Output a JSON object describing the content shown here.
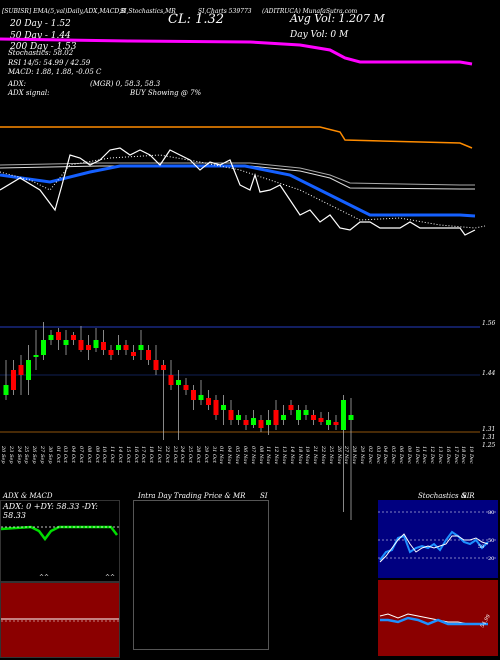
{
  "header": {
    "top_line": "[SUBISR] EMA(5,val)Daily,ADX,MACD,B",
    "top_line2": "SI,Stochastics,MR",
    "top_line3": "SI,Charts 539773",
    "top_line4": "(ADITRUCA) MunafaSutra.com",
    "cl_label": "CL: 1.32",
    "ma20": "20 Day - 1.52",
    "ma50": "50 Day - 1.44",
    "ma200": "200 Day - 1.53",
    "avg_vol": "Avg Vol: 1.207 M",
    "day_vol": "Day Vol: 0  M",
    "stochastics": "Stochastics: 58.02",
    "rsi": "RSI 14/5: 54.99 / 42.59",
    "macd": "MACD: 1.88, 1.88, -0.05 C",
    "adx": "ADX:",
    "adx_vals": "(MGR) 0, 58.3, 58.3",
    "adx_signal": "ADX  signal:",
    "buy_showing": "BUY Showing @ 7%"
  },
  "price_axis": {
    "top_label": "1.56",
    "mid_label": "1.44",
    "low_label1": "1.31",
    "low_label2": "1.31",
    "low_label3": "1.25"
  },
  "dates": [
    "20 Sep",
    "23 Sep",
    "24 Sep",
    "25 Sep",
    "26 Sep",
    "27 Sep",
    "30 Sep",
    "01 Oct",
    "03 Oct",
    "04 Oct",
    "07 Oct",
    "08 Oct",
    "09 Oct",
    "10 Oct",
    "11 Oct",
    "14 Oct",
    "15 Oct",
    "16 Oct",
    "17 Oct",
    "18 Oct",
    "21 Oct",
    "22 Oct",
    "23 Oct",
    "24 Oct",
    "25 Oct",
    "28 Oct",
    "29 Oct",
    "31 Oct",
    "01 Nov",
    "04 Nov",
    "05 Nov",
    "06 Nov",
    "07 Nov",
    "08 Nov",
    "11 Nov",
    "12 Nov",
    "13 Nov",
    "14 Nov",
    "18 Nov",
    "19 Nov",
    "21 Nov",
    "22 Nov",
    "25 Nov",
    "26 Nov",
    "27 Nov",
    "28 Nov",
    "29 Nov",
    "02 Dec",
    "03 Dec",
    "04 Dec",
    "05 Dec",
    "06 Dec",
    "09 Dec",
    "10 Dec",
    "11 Dec",
    "12 Dec",
    "13 Dec",
    "16 Dec",
    "17 Dec",
    "18 Dec",
    "19 Dec"
  ],
  "panels": {
    "adx_title": "ADX  & MACD",
    "adx_readout": "ADX: 0  +DY: 58.33  -DY: 58.33",
    "intraday_title": "Intra Day Trading Price  & MR",
    "intraday_si": "SI",
    "stoch_title": "Stochastics & R",
    "stoch_si": "SI",
    "stoch_80": "80",
    "stoch_50": "50",
    "stoch_20": "20",
    "stoch_value": "58",
    "rsi_value": "54.99"
  },
  "colors": {
    "ma20": "#ffffff",
    "ma50": "#1560ff",
    "ma200": "#ff8c00",
    "ma_magenta": "#ff00ff",
    "up": "#00ff00",
    "down": "#ff0000",
    "stoch_bg": "#000080",
    "rsi_bg": "#8b0000",
    "macd_bg": "#8b0000"
  }
}
